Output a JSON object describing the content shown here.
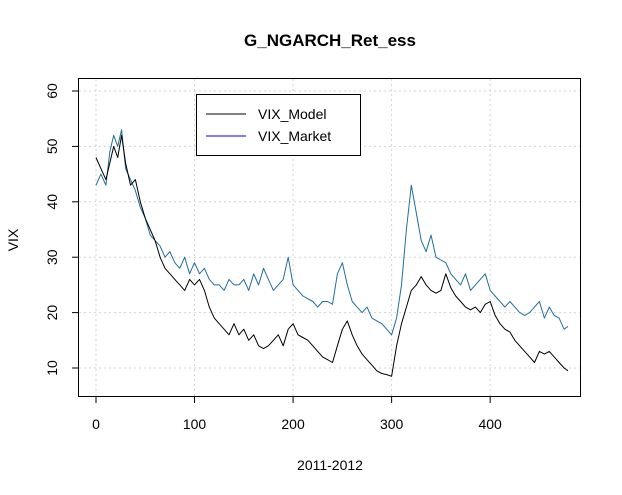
{
  "chart_data": {
    "type": "line",
    "title": "G_NGARCH_Ret_ess",
    "xlabel": "2011-2012",
    "ylabel": "VIX",
    "xlim": [
      0,
      480
    ],
    "ylim": [
      5,
      62
    ],
    "x_ticks": [
      0,
      100,
      200,
      300,
      400
    ],
    "y_ticks": [
      10,
      20,
      30,
      40,
      50,
      60
    ],
    "grid": true,
    "legend_position": "top-left",
    "series": [
      {
        "name": "VIX_Model",
        "color": "#000000",
        "x": [
          0,
          5,
          10,
          14,
          18,
          22,
          26,
          30,
          35,
          40,
          45,
          50,
          55,
          60,
          65,
          70,
          75,
          80,
          85,
          90,
          95,
          100,
          105,
          110,
          115,
          120,
          125,
          130,
          135,
          140,
          145,
          150,
          155,
          160,
          165,
          170,
          175,
          180,
          185,
          190,
          195,
          200,
          205,
          210,
          215,
          220,
          225,
          230,
          235,
          240,
          245,
          250,
          255,
          260,
          265,
          270,
          275,
          280,
          285,
          290,
          295,
          300,
          305,
          310,
          315,
          320,
          325,
          330,
          335,
          340,
          345,
          350,
          355,
          360,
          365,
          370,
          375,
          380,
          385,
          390,
          395,
          400,
          405,
          410,
          415,
          420,
          425,
          430,
          435,
          440,
          445,
          450,
          455,
          460,
          465,
          470,
          475,
          479
        ],
        "values": [
          48,
          46,
          44,
          47,
          50,
          48,
          52,
          47,
          43,
          44,
          40,
          37,
          35,
          33,
          30,
          28,
          27,
          26,
          25,
          24,
          26,
          25,
          26,
          24,
          21,
          19,
          18,
          17,
          16,
          18,
          16,
          17,
          15,
          16,
          14,
          13.5,
          14,
          15,
          16,
          14,
          17,
          18,
          16,
          15.5,
          15,
          14,
          13,
          12,
          11.5,
          11,
          14,
          17,
          18.5,
          16,
          14,
          12.5,
          11.5,
          10.5,
          9.5,
          9,
          8.8,
          8.5,
          14,
          18,
          21,
          24,
          25,
          26.5,
          25,
          24,
          23.5,
          24,
          27,
          24.5,
          23,
          22,
          21,
          20.5,
          21,
          20,
          21.5,
          22,
          19.5,
          18,
          17,
          16.5,
          15,
          14,
          13,
          12,
          11,
          13,
          12.5,
          13,
          12,
          11,
          10,
          9.5
        ]
      },
      {
        "name": "VIX_Market",
        "color": "#1f6f9c",
        "x": [
          0,
          5,
          10,
          14,
          18,
          22,
          26,
          30,
          35,
          40,
          45,
          50,
          55,
          60,
          65,
          70,
          75,
          80,
          85,
          90,
          95,
          100,
          105,
          110,
          115,
          120,
          125,
          130,
          135,
          140,
          145,
          150,
          155,
          160,
          165,
          170,
          175,
          180,
          185,
          190,
          195,
          200,
          205,
          210,
          215,
          220,
          225,
          230,
          235,
          240,
          245,
          250,
          255,
          260,
          265,
          270,
          275,
          280,
          285,
          290,
          295,
          300,
          305,
          310,
          315,
          320,
          325,
          330,
          335,
          340,
          345,
          350,
          355,
          360,
          365,
          370,
          375,
          380,
          385,
          390,
          395,
          400,
          405,
          410,
          415,
          420,
          425,
          430,
          435,
          440,
          445,
          450,
          455,
          460,
          465,
          470,
          475,
          479
        ],
        "values": [
          43,
          45,
          43,
          49,
          52,
          50,
          53,
          46,
          44,
          42,
          39,
          37,
          34,
          33,
          32,
          30,
          31,
          29,
          28,
          30,
          27,
          29,
          27,
          28,
          26,
          25,
          25,
          24,
          26,
          25,
          25,
          26,
          24,
          27,
          25,
          28,
          26,
          24,
          25,
          26,
          30,
          25,
          24,
          23,
          22.5,
          22,
          21,
          22,
          22,
          21.5,
          27,
          29,
          25,
          22,
          21,
          20,
          21,
          19,
          18.5,
          18,
          17,
          16,
          19,
          25,
          35,
          43,
          38,
          33,
          31,
          34,
          30,
          29.5,
          29,
          27,
          26,
          25,
          27,
          24,
          25,
          26,
          27,
          24,
          23,
          22,
          21,
          22,
          21,
          20,
          19.5,
          20,
          21,
          22,
          19,
          21,
          19.5,
          19,
          17,
          17.5
        ]
      }
    ]
  }
}
